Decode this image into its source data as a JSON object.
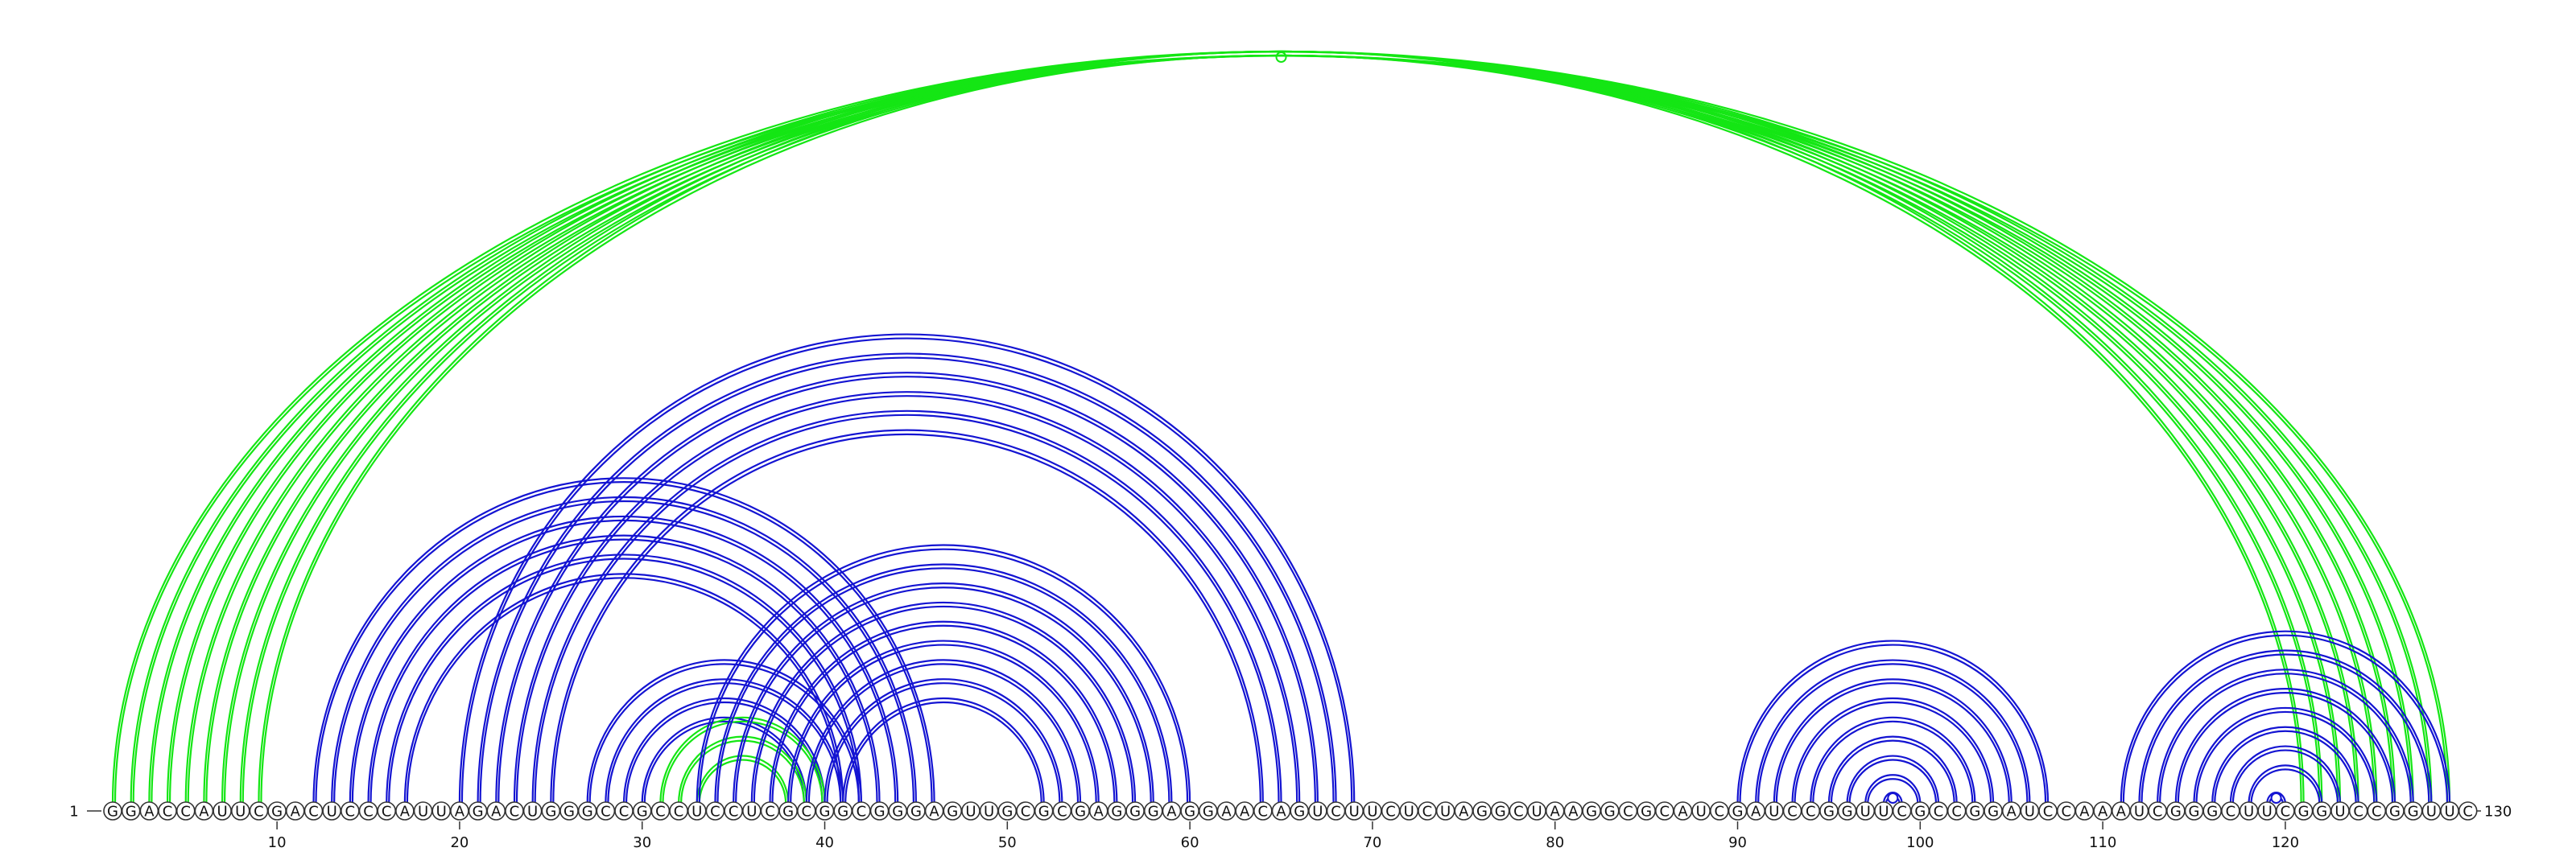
{
  "sequence": "GGACCAUUCGACUCCCAUUAGACUGGGCCGCCUCCUCGCGGCGGGAGUUGCGCGAGGGAGGAACAGUCUUCUCUAGGCUAAGGCGCAUCGAUCCGGUUCGCCGGAUCCAAAUCGGGCUUCGGUCCGGUUC",
  "start_label": "1",
  "end_label": "130",
  "ticks": [
    10,
    20,
    30,
    40,
    50,
    60,
    70,
    80,
    90,
    100,
    110,
    120
  ],
  "colors": {
    "blue": "#1414d2",
    "green": "#14e614"
  },
  "arc_groups": [
    {
      "color": "green",
      "marker": true,
      "pairs": [
        [
          1,
          129
        ],
        [
          2,
          128
        ]
      ]
    },
    {
      "color": "green",
      "marker": false,
      "pairs": [
        [
          3,
          127
        ],
        [
          4,
          126
        ],
        [
          5,
          125
        ],
        [
          6,
          124
        ],
        [
          7,
          123
        ],
        [
          8,
          122
        ],
        [
          9,
          121
        ]
      ]
    },
    {
      "color": "blue",
      "marker": false,
      "pairs": [
        [
          12,
          46
        ],
        [
          13,
          45
        ],
        [
          14,
          44
        ],
        [
          15,
          43
        ],
        [
          16,
          42
        ],
        [
          17,
          41
        ]
      ]
    },
    {
      "color": "blue",
      "marker": false,
      "pairs": [
        [
          20,
          69
        ],
        [
          21,
          68
        ],
        [
          22,
          67
        ],
        [
          23,
          66
        ],
        [
          24,
          65
        ],
        [
          25,
          64
        ]
      ]
    },
    {
      "color": "blue",
      "marker": false,
      "pairs": [
        [
          27,
          42
        ],
        [
          28,
          41
        ],
        [
          29,
          40
        ],
        [
          30,
          39
        ]
      ]
    },
    {
      "color": "green",
      "marker": false,
      "pairs": [
        [
          31,
          40
        ],
        [
          32,
          39
        ],
        [
          33,
          38
        ]
      ]
    },
    {
      "color": "blue",
      "marker": false,
      "pairs": [
        [
          33,
          60
        ],
        [
          34,
          59
        ],
        [
          35,
          58
        ],
        [
          36,
          57
        ],
        [
          37,
          56
        ],
        [
          38,
          55
        ],
        [
          39,
          54
        ],
        [
          40,
          53
        ],
        [
          41,
          52
        ]
      ]
    },
    {
      "color": "blue",
      "marker": false,
      "pairs": [
        [
          90,
          107
        ],
        [
          91,
          106
        ],
        [
          92,
          105
        ],
        [
          93,
          104
        ],
        [
          94,
          103
        ],
        [
          95,
          102
        ],
        [
          96,
          101
        ],
        [
          97,
          100
        ]
      ]
    },
    {
      "color": "blue",
      "marker": true,
      "pairs": [
        [
          98,
          99
        ]
      ]
    },
    {
      "color": "blue",
      "marker": false,
      "pairs": [
        [
          111,
          129
        ],
        [
          112,
          128
        ],
        [
          113,
          127
        ],
        [
          114,
          126
        ],
        [
          115,
          125
        ],
        [
          116,
          124
        ],
        [
          117,
          123
        ],
        [
          118,
          122
        ]
      ]
    },
    {
      "color": "blue",
      "marker": true,
      "pairs": [
        [
          119,
          120
        ]
      ]
    }
  ]
}
